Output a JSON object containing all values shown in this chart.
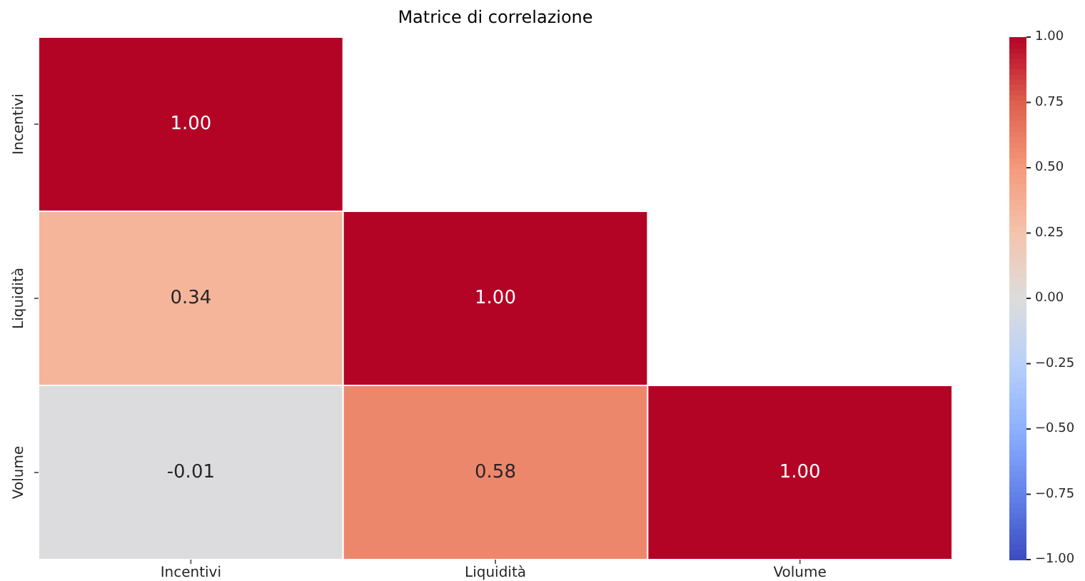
{
  "chart_data": {
    "type": "heatmap",
    "title": "Matrice di correlazione",
    "categories": [
      "Incentivi",
      "Liquidità",
      "Volume"
    ],
    "y_categories": [
      "Incentivi",
      "Liquidità",
      "Volume"
    ],
    "cells": [
      [
        1.0,
        null,
        null
      ],
      [
        0.34,
        1.0,
        null
      ],
      [
        -0.01,
        0.58,
        1.0
      ]
    ],
    "cell_labels": [
      [
        "1.00",
        null,
        null
      ],
      [
        "0.34",
        "1.00",
        null
      ],
      [
        "-0.01",
        "0.58",
        "1.00"
      ]
    ],
    "clim": [
      -1,
      1
    ],
    "cticks": [
      {
        "value": -1,
        "label": "−1.00"
      },
      {
        "value": -0.75,
        "label": "−0.75"
      },
      {
        "value": -0.5,
        "label": "−0.50"
      },
      {
        "value": -0.25,
        "label": "−0.25"
      },
      {
        "value": 0,
        "label": "0.00"
      },
      {
        "value": 0.25,
        "label": "0.25"
      },
      {
        "value": 0.5,
        "label": "0.50"
      },
      {
        "value": 0.75,
        "label": "0.75"
      },
      {
        "value": 1,
        "label": "1.00"
      }
    ]
  }
}
